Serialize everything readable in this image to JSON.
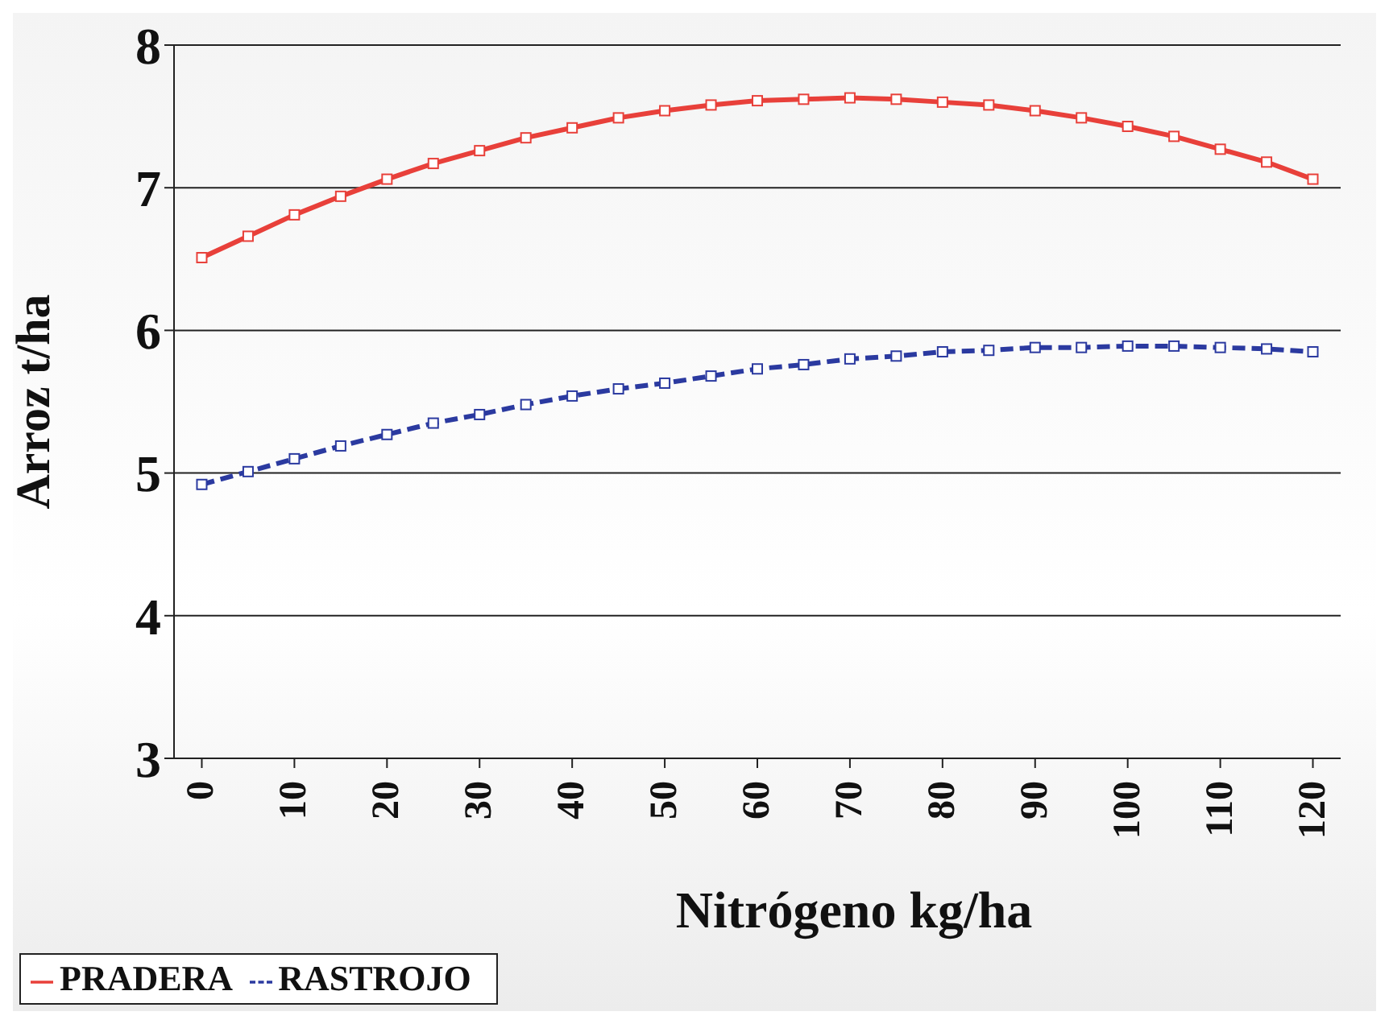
{
  "chart_data": {
    "type": "line",
    "xlabel": "Nitrógeno kg/ha",
    "ylabel": "Arroz t/ha",
    "x": [
      0,
      5,
      10,
      15,
      20,
      25,
      30,
      35,
      40,
      45,
      50,
      55,
      60,
      65,
      70,
      75,
      80,
      85,
      90,
      95,
      100,
      105,
      110,
      115,
      120
    ],
    "series": [
      {
        "name": "PRADERA",
        "color": "#e8403a",
        "line_style": "solid",
        "values": [
          6.51,
          6.66,
          6.81,
          6.94,
          7.06,
          7.17,
          7.26,
          7.35,
          7.42,
          7.49,
          7.54,
          7.58,
          7.61,
          7.62,
          7.63,
          7.62,
          7.6,
          7.58,
          7.54,
          7.49,
          7.43,
          7.36,
          7.27,
          7.18,
          7.06
        ]
      },
      {
        "name": "RASTROJO",
        "color": "#2b3aa0",
        "line_style": "dashed",
        "values": [
          4.92,
          5.01,
          5.1,
          5.19,
          5.27,
          5.35,
          5.41,
          5.48,
          5.54,
          5.59,
          5.63,
          5.68,
          5.73,
          5.76,
          5.8,
          5.82,
          5.85,
          5.86,
          5.88,
          5.88,
          5.89,
          5.89,
          5.88,
          5.87,
          5.85
        ]
      }
    ],
    "xlim": [
      -3,
      123
    ],
    "xticks": [
      0,
      10,
      20,
      30,
      40,
      50,
      60,
      70,
      80,
      90,
      100,
      110,
      120
    ],
    "ylim": [
      3,
      8
    ],
    "yticks": [
      3,
      4,
      5,
      6,
      7,
      8
    ],
    "grid": "y",
    "legend": "bottom left",
    "marker": "square"
  }
}
